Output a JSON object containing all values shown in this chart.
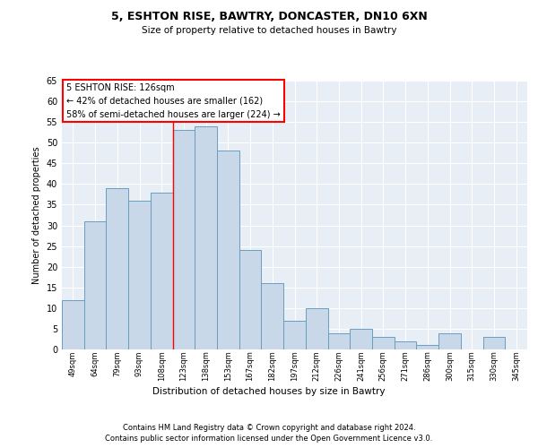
{
  "title1": "5, ESHTON RISE, BAWTRY, DONCASTER, DN10 6XN",
  "title2": "Size of property relative to detached houses in Bawtry",
  "xlabel": "Distribution of detached houses by size in Bawtry",
  "ylabel": "Number of detached properties",
  "categories": [
    "49sqm",
    "64sqm",
    "79sqm",
    "93sqm",
    "108sqm",
    "123sqm",
    "138sqm",
    "153sqm",
    "167sqm",
    "182sqm",
    "197sqm",
    "212sqm",
    "226sqm",
    "241sqm",
    "256sqm",
    "271sqm",
    "286sqm",
    "300sqm",
    "315sqm",
    "330sqm",
    "345sqm"
  ],
  "values": [
    12,
    31,
    39,
    36,
    38,
    53,
    54,
    48,
    24,
    16,
    7,
    10,
    4,
    5,
    3,
    2,
    1,
    4,
    0,
    3,
    0
  ],
  "bar_color": "#c8d8e8",
  "bar_edge_color": "#6a9dbf",
  "background_color": "#e8eef5",
  "grid_color": "#ffffff",
  "ylim": [
    0,
    65
  ],
  "yticks": [
    0,
    5,
    10,
    15,
    20,
    25,
    30,
    35,
    40,
    45,
    50,
    55,
    60,
    65
  ],
  "vline_color": "red",
  "vline_pos": 4.5,
  "annotation_text": "5 ESHTON RISE: 126sqm\n← 42% of detached houses are smaller (162)\n58% of semi-detached houses are larger (224) →",
  "annotation_box_color": "white",
  "annotation_box_edge": "red",
  "footer1": "Contains HM Land Registry data © Crown copyright and database right 2024.",
  "footer2": "Contains public sector information licensed under the Open Government Licence v3.0."
}
